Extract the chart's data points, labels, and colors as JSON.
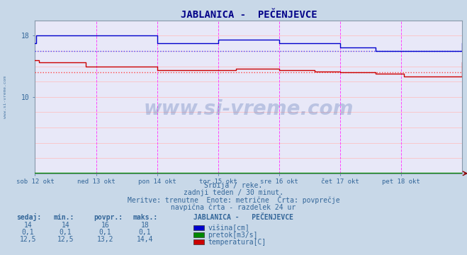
{
  "title": "JABLANICA -  PEČENJEVCE",
  "bg_color": "#c8d8e8",
  "plot_bg": "#e8e8f8",
  "x_labels": [
    "sob 12 okt",
    "ned 13 okt",
    "pon 14 okt",
    "tor 15 okt",
    "sre 16 okt",
    "čet 17 okt",
    "pet 18 okt"
  ],
  "x_ticks": [
    0,
    48,
    96,
    144,
    192,
    240,
    288
  ],
  "x_max": 336,
  "ymin": 0,
  "ymax": 20,
  "avg_visina": 16.0,
  "avg_temp": 13.2,
  "line_blue": "#0000cc",
  "line_red": "#cc0000",
  "line_green": "#008800",
  "dot_blue": "#4444ff",
  "dot_red": "#ff4444",
  "subtitle1": "Srbija / reke.",
  "subtitle2": "zadnji teden / 30 minut.",
  "subtitle3": "Meritve: trenutne  Enote: metrične  Črta: povprečje",
  "subtitle4": "navpična črta - razdelek 24 ur",
  "table_headers": [
    "sedaj:",
    "min.:",
    "povpr.:",
    "maks.:"
  ],
  "table_label": "JABLANICA -   PEČENJEVCE",
  "row1": [
    "14",
    "14",
    "16",
    "18"
  ],
  "row2": [
    "0,1",
    "0,1",
    "0,1",
    "0,1"
  ],
  "row3": [
    "12,5",
    "12,5",
    "13,2",
    "14,4"
  ],
  "legend1": "višina[cm]",
  "legend2": "pretok[m3/s]",
  "legend3": "temperatura[C]",
  "text_color": "#336699",
  "title_color": "#000088",
  "watermark": "www.si-vreme.com"
}
